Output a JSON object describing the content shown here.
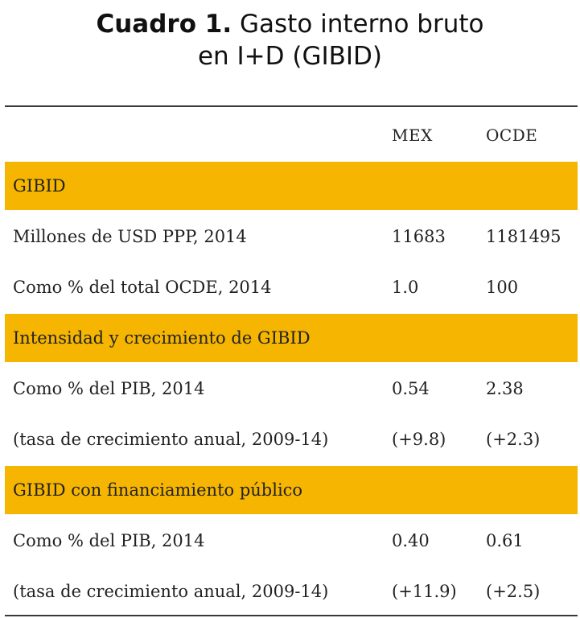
{
  "title": {
    "bold": "Cuadro 1.",
    "line1": " Gasto interno bruto",
    "line2": "en I+D (GIBID)"
  },
  "table": {
    "columns": [
      "MEX",
      "OCDE"
    ],
    "sections": [
      {
        "title": "GIBID",
        "rows": [
          {
            "label": "Millones de USD PPP, 2014",
            "mex": "11683",
            "ocde": "1181495"
          },
          {
            "label": "Como % del total OCDE, 2014",
            "mex": "1.0",
            "ocde": "100"
          }
        ]
      },
      {
        "title": "Intensidad y crecimiento de GIBID",
        "rows": [
          {
            "label": "Como % del PIB, 2014",
            "mex": "0.54",
            "ocde": "2.38"
          },
          {
            "label": "(tasa de crecimiento anual, 2009-14)",
            "mex": "(+9.8)",
            "ocde": "(+2.3)"
          }
        ]
      },
      {
        "title": "GIBID con financiamiento público",
        "rows": [
          {
            "label": "Como % del PIB, 2014",
            "mex": "0.40",
            "ocde": "0.61"
          },
          {
            "label": "(tasa de crecimiento anual, 2009-14)",
            "mex": "(+11.9)",
            "ocde": "(+2.5)"
          }
        ]
      }
    ],
    "colors": {
      "section_fill": "#f5b500",
      "rule": "#3a3a3a"
    }
  }
}
